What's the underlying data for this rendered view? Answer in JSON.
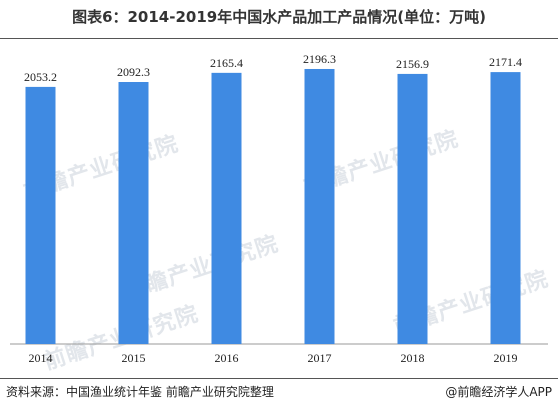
{
  "chart_data": {
    "type": "bar",
    "title": "图表6：2014-2019年中国水产品加工产品情况(单位：万吨)",
    "categories": [
      "2014",
      "2015",
      "2016",
      "2017",
      "2018",
      "2019"
    ],
    "values": [
      2053.2,
      2092.3,
      2165.4,
      2196.3,
      2156.9,
      2171.4
    ],
    "value_labels": [
      "2053.2",
      "2092.3",
      "2165.4",
      "2196.3",
      "2156.9",
      "2171.4"
    ],
    "xlabel": "",
    "ylabel": "",
    "ylim": [
      0,
      2300
    ],
    "grid": false,
    "legend": "none",
    "bar_color": "#3f8ae2"
  },
  "footer": {
    "source": "资料来源：中国渔业统计年鉴 前瞻产业研究院整理",
    "brand": "@前瞻经济学人APP"
  },
  "watermark_text": "前瞻产业研究院"
}
